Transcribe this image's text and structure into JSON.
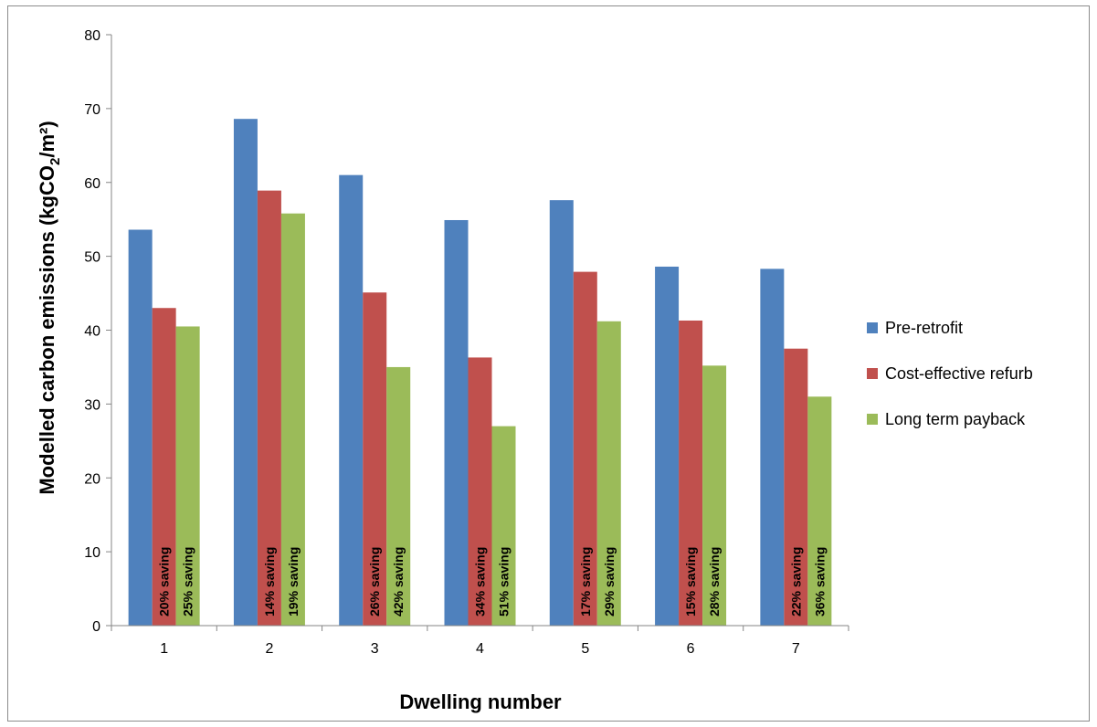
{
  "chart_data": {
    "type": "bar",
    "title": "",
    "xlabel": "Dwelling number",
    "ylabel_main": "Modelled carbon emissions (kgCO",
    "ylabel_sub": "2",
    "ylabel_end": "/m²)",
    "categories": [
      "1",
      "2",
      "3",
      "4",
      "5",
      "6",
      "7"
    ],
    "ylim": [
      0,
      80
    ],
    "yticks": [
      0,
      10,
      20,
      30,
      40,
      50,
      60,
      70,
      80
    ],
    "grid": false,
    "legend_position": "right",
    "series": [
      {
        "name": "Pre-retrofit",
        "color": "#4f81bd",
        "values": [
          53.6,
          68.6,
          61.0,
          54.9,
          57.6,
          48.6,
          48.3
        ],
        "labels": [
          "",
          "",
          "",
          "",
          "",
          "",
          ""
        ]
      },
      {
        "name": "Cost-effective refurb",
        "color": "#c0504d",
        "values": [
          43.0,
          58.9,
          45.1,
          36.3,
          47.9,
          41.3,
          37.5
        ],
        "labels": [
          "20% saving",
          "14% saving",
          "26% saving",
          "34% saving",
          "17% saving",
          "15% saving",
          "22% saving"
        ]
      },
      {
        "name": "Long term payback",
        "color": "#9bbb59",
        "values": [
          40.5,
          55.8,
          35.0,
          27.0,
          41.2,
          35.2,
          31.0
        ],
        "labels": [
          "25% saving",
          "19% saving",
          "42% saving",
          "51% saving",
          "29% saving",
          "28% saving",
          "36% saving"
        ]
      }
    ]
  }
}
